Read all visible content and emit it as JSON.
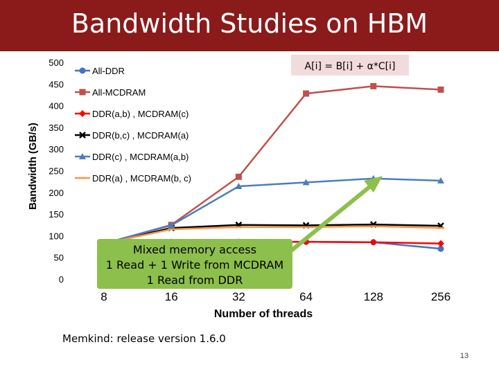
{
  "slide": {
    "title": "Bandwidth Studies on HBM",
    "footnote": "Memkind: release version 1.6.0",
    "page_number": "13",
    "callout_text": [
      "Mixed memory access",
      "1 Read + 1 Write from MCDRAM",
      "1 Read from DDR"
    ],
    "callout_color": "#8dbf4c",
    "formula": "A[i] = B[i] + α*C[i]",
    "title_bar_color": "#8b1a1a"
  },
  "chart_data": {
    "type": "line",
    "title": "",
    "xlabel": "Number of threads",
    "ylabel": "Bandwidth (GB/s)",
    "categories": [
      "8",
      "16",
      "32",
      "64",
      "128",
      "256"
    ],
    "ylim": [
      0,
      500
    ],
    "yticks": [
      "0",
      "50",
      "100",
      "150",
      "200",
      "250",
      "300",
      "350",
      "400",
      "450",
      "500"
    ],
    "grid": false,
    "legend_position": "top-left",
    "series": [
      {
        "name": "All-DDR",
        "color": "#4472c4",
        "marker": "circle",
        "values": [
          82,
          86,
          86,
          86,
          85,
          70
        ]
      },
      {
        "name": "All-MCDRAM",
        "color": "#c0504d",
        "marker": "square",
        "values": [
          82,
          125,
          236,
          428,
          445,
          437
        ]
      },
      {
        "name": "DDR(a,b) , MCDRAM(c)",
        "color": "#ff0000",
        "marker": "diamond",
        "values": [
          82,
          85,
          85,
          86,
          85,
          82
        ]
      },
      {
        "name": "DDR(b,c) , MCDRAM(a)",
        "color": "#000000",
        "marker": "cross",
        "values": [
          82,
          118,
          125,
          124,
          126,
          123
        ]
      },
      {
        "name": "DDR(c) , MCDRAM(a,b)",
        "color": "#4a7ebb",
        "marker": "triangle",
        "values": [
          82,
          124,
          214,
          223,
          232,
          227
        ]
      },
      {
        "name": "DDR(a) , MCDRAM(b, c)",
        "color": "#f79646",
        "marker": "dash",
        "values": [
          82,
          115,
          120,
          120,
          122,
          118
        ]
      }
    ]
  }
}
